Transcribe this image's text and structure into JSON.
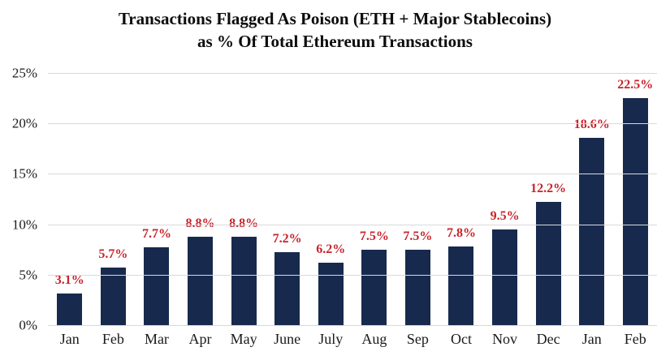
{
  "chart_data": {
    "type": "bar",
    "title": "Transactions Flagged As Poison (ETH + Major Stablecoins) as % Of Total Ethereum Transactions",
    "title_line1": "Transactions Flagged As Poison (ETH + Major Stablecoins)",
    "title_line2": "as % Of Total Ethereum Transactions",
    "categories": [
      "Jan",
      "Feb",
      "Mar",
      "Apr",
      "May",
      "June",
      "July",
      "Aug",
      "Sep",
      "Oct",
      "Nov",
      "Dec",
      "Jan",
      "Feb"
    ],
    "values": [
      3.1,
      5.7,
      7.7,
      8.8,
      8.8,
      7.2,
      6.2,
      7.5,
      7.5,
      7.8,
      9.5,
      12.2,
      18.6,
      22.5
    ],
    "value_labels": [
      "3.1%",
      "5.7%",
      "7.7%",
      "8.8%",
      "8.8%",
      "7.2%",
      "6.2%",
      "7.5%",
      "7.5%",
      "7.8%",
      "9.5%",
      "12.2%",
      "18.6%",
      "22.5%"
    ],
    "xlabel": "",
    "ylabel": "",
    "ylim": [
      0,
      25
    ],
    "y_ticks": [
      0,
      5,
      10,
      15,
      20,
      25
    ],
    "y_tick_labels": [
      "0%",
      "5%",
      "10%",
      "15%",
      "20%",
      "25%"
    ],
    "grid": true,
    "legend": false,
    "colors": {
      "bar": "#172a4e",
      "value_label": "#c8232b",
      "gridline": "#d9d9d9",
      "tick_label": "#1a1a1a",
      "background": "#ffffff"
    }
  }
}
